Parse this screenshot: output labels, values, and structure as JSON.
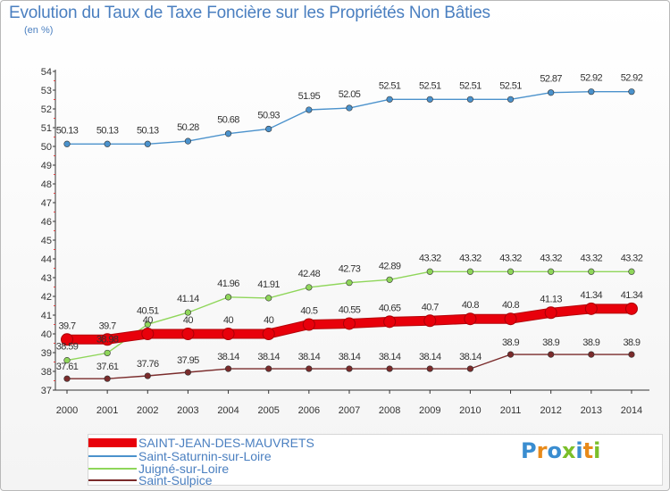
{
  "header": {
    "title": "Evolution du Taux de Taxe Foncière sur les Propriétés Non Bâties",
    "subtitle": "(en %)"
  },
  "logo": {
    "letters": [
      {
        "ch": "P",
        "color": "#3a8dd0"
      },
      {
        "ch": "r",
        "color": "#e88a1a"
      },
      {
        "ch": "o",
        "color": "#3a8dd0"
      },
      {
        "ch": "x",
        "color": "#7bbf2a"
      },
      {
        "ch": "i",
        "color": "#3a8dd0"
      },
      {
        "ch": "t",
        "color": "#e88a1a"
      },
      {
        "ch": "i",
        "color": "#7bbf2a"
      }
    ]
  },
  "chart_data": {
    "type": "line",
    "title": "Evolution du Taux de Taxe Foncière sur les Propriétés Non Bâties",
    "ylabel": "(en %)",
    "xlabel": "",
    "ylim": [
      37,
      54
    ],
    "yticks": [
      "37",
      "38",
      "39",
      "40",
      "41",
      "42",
      "43",
      "44",
      "45",
      "46",
      "47",
      "48",
      "49",
      "50",
      "51",
      "52",
      "53",
      "54"
    ],
    "grid": false,
    "legend_position": "bottom",
    "categories": [
      "2000",
      "2001",
      "2002",
      "2003",
      "2004",
      "2005",
      "2006",
      "2007",
      "2008",
      "2009",
      "2010",
      "2011",
      "2012",
      "2013",
      "2014"
    ],
    "series": [
      {
        "name": "SAINT-JEAN-DES-MAUVRETS",
        "color": "#e8000b",
        "values": [
          39.7,
          39.7,
          40,
          40,
          40,
          40,
          40.5,
          40.55,
          40.65,
          40.7,
          40.8,
          40.8,
          41.13,
          41.34,
          41.34
        ],
        "labels": [
          "39.7",
          "39.7",
          "40",
          "40",
          "40",
          "40",
          "40.5",
          "40.55",
          "40.65",
          "40.7",
          "40.8",
          "40.8",
          "41.13",
          "41.34",
          "41.34"
        ]
      },
      {
        "name": "Saint-Saturnin-sur-Loire",
        "color": "#4b92cc",
        "values": [
          50.13,
          50.13,
          50.13,
          50.28,
          50.68,
          50.93,
          51.95,
          52.05,
          52.51,
          52.51,
          52.51,
          52.51,
          52.87,
          52.92,
          52.92
        ],
        "labels": [
          "50.13",
          "50.13",
          "50.13",
          "50.28",
          "50.68",
          "50.93",
          "51.95",
          "52.05",
          "52.51",
          "52.51",
          "52.51",
          "52.51",
          "52.87",
          "52.92",
          "52.92"
        ]
      },
      {
        "name": "Juigné-sur-Loire",
        "color": "#8fd65a",
        "values": [
          38.59,
          38.98,
          40.51,
          41.14,
          41.96,
          41.91,
          42.48,
          42.73,
          42.89,
          43.32,
          43.32,
          43.32,
          43.32,
          43.32,
          43.32
        ],
        "labels": [
          "38.59",
          "38.98",
          "40.51",
          "41.14",
          "41.96",
          "41.91",
          "42.48",
          "42.73",
          "42.89",
          "43.32",
          "43.32",
          "43.32",
          "43.32",
          "43.32",
          "43.32"
        ]
      },
      {
        "name": "Saint-Sulpice",
        "color": "#7a2b2b",
        "values": [
          37.61,
          37.61,
          37.76,
          37.95,
          38.14,
          38.14,
          38.14,
          38.14,
          38.14,
          38.14,
          38.14,
          38.9,
          38.9,
          38.9,
          38.9
        ],
        "labels": [
          "37.61",
          "37.61",
          "37.76",
          "37.95",
          "38.14",
          "38.14",
          "38.14",
          "38.14",
          "38.14",
          "38.14",
          "38.14",
          "38.9",
          "38.9",
          "38.9",
          "38.9"
        ]
      }
    ]
  }
}
